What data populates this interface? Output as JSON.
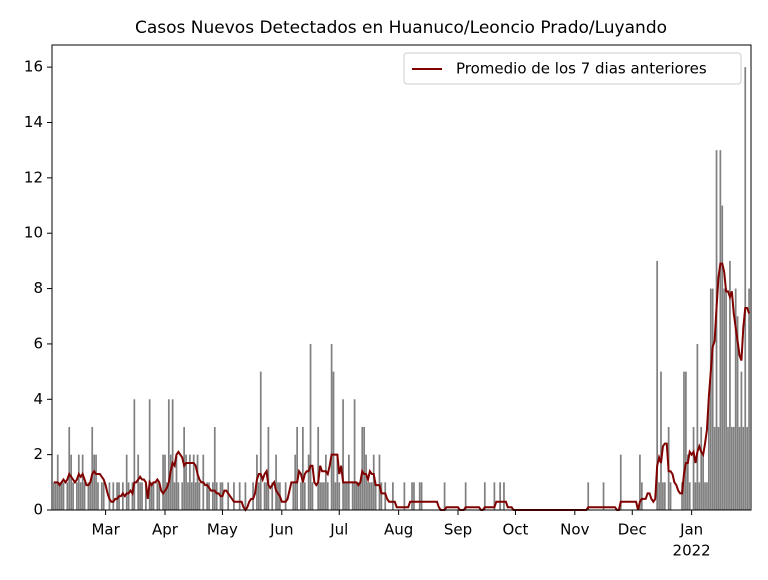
{
  "chart_data": {
    "type": "bar",
    "title": "Casos Nuevos Detectados en Huanuco/Leoncio Prado/Luyando",
    "color": "#808080",
    "categories": [
      null,
      null,
      null,
      null,
      null,
      null,
      null,
      null,
      null,
      null,
      null,
      null,
      null,
      null,
      null,
      null,
      null,
      null,
      null,
      null,
      null,
      null,
      null,
      null,
      null,
      null,
      null,
      "Mar",
      null,
      null,
      null,
      null,
      null,
      null,
      null,
      null,
      null,
      null,
      null,
      null,
      null,
      null,
      null,
      null,
      null,
      null,
      null,
      null,
      null,
      null,
      null,
      null,
      null,
      null,
      null,
      null,
      null,
      null,
      "Apr",
      null,
      null,
      null,
      null,
      null,
      null,
      null,
      null,
      null,
      null,
      null,
      null,
      null,
      null,
      null,
      null,
      null,
      null,
      null,
      null,
      null,
      null,
      null,
      null,
      null,
      null,
      null,
      null,
      null,
      "May",
      null,
      null,
      null,
      null,
      null,
      null,
      null,
      null,
      null,
      null,
      null,
      null,
      null,
      null,
      null,
      null,
      null,
      null,
      null,
      null,
      null,
      null,
      null,
      null,
      null,
      null,
      null,
      null,
      null,
      null,
      "Jun",
      null,
      null,
      null,
      null,
      null,
      null,
      null,
      null,
      null,
      null,
      null,
      null,
      null,
      null,
      null,
      null,
      null,
      null,
      null,
      null,
      null,
      null,
      null,
      null,
      null,
      null,
      null,
      null,
      null,
      "Jul",
      null,
      null,
      null,
      null,
      null,
      null,
      null,
      null,
      null,
      null,
      null,
      null,
      null,
      null,
      null,
      null,
      null,
      null,
      null,
      null,
      null,
      null,
      null,
      null,
      null,
      null,
      null,
      null,
      null,
      null,
      "Aug",
      null,
      null,
      null,
      null,
      null,
      null,
      null,
      null,
      null,
      null,
      null,
      null,
      null,
      null,
      null,
      null,
      null,
      null,
      null,
      null,
      null,
      null,
      null,
      null,
      null,
      null,
      null,
      null,
      null,
      null,
      "Sep",
      null,
      null,
      null,
      null,
      null,
      null,
      null,
      null,
      null,
      null,
      null,
      null,
      null,
      null,
      null,
      null,
      null,
      null,
      null,
      null,
      null,
      null,
      null,
      null,
      null,
      null,
      null,
      null,
      null,
      "Oct",
      null,
      null,
      null,
      null,
      null,
      null,
      null,
      null,
      null,
      null,
      null,
      null,
      null,
      null,
      null,
      null,
      null,
      null,
      null,
      null,
      null,
      null,
      null,
      null,
      null,
      null,
      null,
      null,
      null,
      null,
      "Nov",
      null,
      null,
      null,
      null,
      null,
      null,
      null,
      null,
      null,
      null,
      null,
      null,
      null,
      null,
      null,
      null,
      null,
      null,
      null,
      null,
      null,
      null,
      null,
      null,
      null,
      null,
      null,
      null,
      null,
      "Dec",
      null,
      null,
      null,
      null,
      null,
      null,
      null,
      null,
      null,
      null,
      null,
      null,
      null,
      null,
      null,
      null,
      null,
      null,
      null,
      null,
      null,
      null,
      null,
      null,
      null,
      null,
      null,
      null,
      null,
      null,
      "Jan",
      null,
      null,
      null,
      null,
      null,
      null,
      null,
      null,
      null,
      null,
      null,
      null,
      null,
      null,
      null,
      null,
      null,
      null,
      null,
      null,
      null,
      null,
      null,
      null,
      null,
      null,
      null,
      null,
      null,
      null
    ],
    "year_label": "2022",
    "values": [
      1,
      1,
      2,
      1,
      1,
      1,
      0,
      1,
      3,
      2,
      1,
      0,
      1,
      2,
      1,
      2,
      1,
      0,
      1,
      1,
      3,
      2,
      2,
      1,
      0,
      1,
      1,
      0,
      0,
      1,
      0,
      1,
      0,
      1,
      1,
      0,
      1,
      0,
      2,
      1,
      0,
      1,
      4,
      0,
      2,
      1,
      1,
      0,
      1,
      0,
      4,
      1,
      1,
      0,
      1,
      1,
      0,
      2,
      2,
      1,
      4,
      2,
      4,
      1,
      2,
      1,
      0,
      1,
      3,
      2,
      1,
      2,
      1,
      2,
      1,
      2,
      1,
      0,
      2,
      0,
      1,
      1,
      0,
      1,
      3,
      1,
      0,
      1,
      1,
      0,
      0,
      1,
      0,
      0,
      1,
      0,
      0,
      1,
      0,
      0,
      1,
      0,
      0,
      0,
      1,
      0,
      2,
      1,
      5,
      0,
      1,
      1,
      3,
      0,
      1,
      0,
      2,
      1,
      1,
      0,
      0,
      1,
      0,
      0,
      0,
      1,
      2,
      3,
      0,
      1,
      3,
      1,
      0,
      2,
      6,
      1,
      0,
      0,
      3,
      1,
      1,
      1,
      2,
      1,
      0,
      6,
      5,
      1,
      2,
      1,
      0,
      4,
      1,
      1,
      2,
      0,
      1,
      4,
      1,
      1,
      1,
      3,
      3,
      2,
      1,
      1,
      1,
      2,
      1,
      0,
      2,
      1,
      0,
      1,
      0,
      0,
      0,
      1,
      0,
      0,
      0,
      0,
      0,
      1,
      0,
      0,
      0,
      1,
      1,
      0,
      0,
      1,
      1,
      0,
      0,
      0,
      0,
      0,
      0,
      0,
      0,
      0,
      0,
      0,
      1,
      0,
      0,
      0,
      0,
      0,
      0,
      0,
      0,
      0,
      0,
      1,
      0,
      0,
      0,
      0,
      0,
      0,
      0,
      0,
      0,
      1,
      0,
      0,
      0,
      0,
      1,
      0,
      0,
      1,
      0,
      1,
      0,
      0,
      0,
      0,
      0,
      0,
      0,
      0,
      0,
      0,
      0,
      0,
      0,
      0,
      0,
      0,
      0,
      0,
      0,
      0,
      0,
      0,
      0,
      0,
      0,
      0,
      0,
      0,
      0,
      0,
      0,
      0,
      0,
      0,
      0,
      0,
      0,
      0,
      0,
      0,
      0,
      0,
      0,
      1,
      0,
      0,
      0,
      0,
      0,
      0,
      0,
      1,
      0,
      0,
      0,
      0,
      0,
      0,
      0,
      0,
      2,
      0,
      0,
      0,
      0,
      0,
      0,
      0,
      0,
      0,
      2,
      1,
      0,
      0,
      0,
      0,
      0,
      0,
      0,
      9,
      1,
      5,
      1,
      1,
      0,
      3,
      1,
      0,
      0,
      0,
      0,
      0,
      1,
      5,
      5,
      2,
      1,
      0,
      3,
      1,
      6,
      1,
      3,
      2,
      1,
      1,
      4,
      8,
      8,
      3,
      13,
      3,
      13,
      11,
      8,
      8,
      3,
      9,
      3,
      3,
      8,
      7,
      3,
      5,
      3,
      16,
      3,
      8
    ],
    "series": [
      {
        "type": "line",
        "name": "Promedio de los 7 dias anteriores",
        "color": "#800000",
        "values": [
          1.0,
          1.0,
          1.0,
          0.9,
          1.0,
          1.1,
          1.0,
          1.1,
          1.3,
          1.2,
          1.1,
          1.0,
          1.1,
          1.3,
          1.2,
          1.3,
          1.1,
          0.9,
          0.9,
          1.0,
          1.3,
          1.4,
          1.3,
          1.3,
          1.3,
          1.2,
          1.1,
          0.9,
          0.6,
          0.4,
          0.3,
          0.3,
          0.4,
          0.4,
          0.5,
          0.5,
          0.6,
          0.5,
          0.6,
          0.6,
          0.7,
          0.6,
          1.0,
          1.0,
          1.1,
          1.2,
          1.1,
          1.1,
          1.0,
          0.4,
          1.0,
          0.9,
          1.0,
          1.0,
          1.1,
          1.0,
          0.7,
          0.6,
          0.7,
          0.8,
          1.0,
          1.4,
          1.7,
          1.6,
          2.0,
          2.1,
          2.0,
          1.9,
          1.6,
          1.7,
          1.7,
          1.7,
          1.7,
          1.7,
          1.6,
          1.3,
          1.1,
          1.0,
          1.0,
          0.9,
          0.9,
          0.8,
          0.7,
          0.7,
          0.7,
          0.6,
          0.6,
          0.5,
          0.5,
          0.7,
          0.7,
          0.6,
          0.5,
          0.4,
          0.3,
          0.3,
          0.3,
          0.3,
          0.3,
          0.1,
          0.0,
          0.1,
          0.3,
          0.4,
          0.4,
          0.6,
          1.1,
          1.3,
          1.3,
          1.1,
          1.3,
          1.4,
          0.9,
          0.8,
          0.9,
          1.0,
          0.7,
          0.6,
          0.5,
          0.3,
          0.3,
          0.3,
          0.4,
          0.7,
          1.0,
          1.0,
          1.0,
          1.0,
          1.4,
          1.3,
          1.0,
          1.3,
          1.4,
          1.4,
          1.6,
          1.6,
          1.0,
          0.9,
          1.0,
          1.6,
          1.4,
          1.4,
          1.4,
          1.3,
          1.6,
          2.0,
          2.0,
          2.0,
          2.0,
          1.3,
          1.6,
          1.0,
          1.0,
          1.0,
          1.0,
          1.0,
          1.0,
          1.0,
          1.0,
          0.9,
          1.0,
          1.4,
          1.3,
          1.3,
          1.1,
          1.4,
          1.3,
          1.3,
          0.9,
          0.9,
          0.9,
          0.6,
          0.6,
          0.6,
          0.4,
          0.3,
          0.3,
          0.3,
          0.3,
          0.1,
          0.1,
          0.1,
          0.1,
          0.1,
          0.1,
          0.1,
          0.3,
          0.3,
          0.3,
          0.3,
          0.3,
          0.3,
          0.3,
          0.3,
          0.3,
          0.3,
          0.3,
          0.3,
          0.3,
          0.3,
          0.3,
          0.1,
          0.0,
          0.0,
          0.0,
          0.1,
          0.1,
          0.1,
          0.1,
          0.1,
          0.1,
          0.1,
          0.0,
          0.0,
          0.0,
          0.1,
          0.1,
          0.1,
          0.1,
          0.1,
          0.1,
          0.1,
          0.1,
          0.0,
          0.0,
          0.1,
          0.1,
          0.1,
          0.1,
          0.1,
          0.1,
          0.3,
          0.3,
          0.3,
          0.3,
          0.3,
          0.3,
          0.1,
          0.1,
          0.1,
          0.0,
          0,
          0,
          0,
          0,
          0,
          0,
          0,
          0,
          0,
          0,
          0,
          0,
          0,
          0,
          0,
          0,
          0,
          0,
          0,
          0,
          0,
          0,
          0,
          0,
          0,
          0,
          0,
          0,
          0,
          0,
          0,
          0,
          0,
          0,
          0,
          0,
          0,
          0,
          0.1,
          0.1,
          0.1,
          0.1,
          0.1,
          0.1,
          0.1,
          0.1,
          0.1,
          0.1,
          0.1,
          0.1,
          0.1,
          0.1,
          0.1,
          0,
          0,
          0.3,
          0.3,
          0.3,
          0.3,
          0.3,
          0.3,
          0.3,
          0.3,
          0.3,
          0.0,
          0.3,
          0.4,
          0.4,
          0.4,
          0.6,
          0.6,
          0.4,
          0.3,
          0.4,
          1.6,
          1.9,
          1.7,
          2.3,
          2.4,
          2.4,
          1.4,
          1.4,
          1.3,
          1.0,
          0.9,
          0.7,
          0.6,
          0.6,
          1.3,
          1.7,
          1.7,
          2.1,
          2.0,
          2.1,
          1.7,
          2.1,
          2.3,
          2.1,
          2.0,
          2.4,
          2.9,
          4.1,
          5.0,
          5.9,
          6.1,
          7.3,
          8.4,
          8.9,
          8.9,
          8.6,
          7.9,
          7.9,
          7.7,
          7.9,
          7.1,
          6.6,
          6.1,
          5.6,
          5.4,
          6.6,
          7.3,
          7.3,
          7.1
        ]
      }
    ],
    "ylim": [
      0,
      16.8
    ],
    "yticks": [
      0,
      2,
      4,
      6,
      8,
      10,
      12,
      14,
      16
    ],
    "legend": "upper right"
  }
}
